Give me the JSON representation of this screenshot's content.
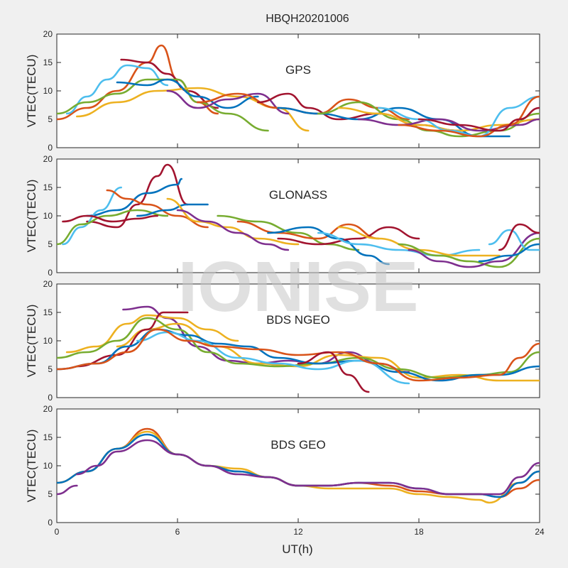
{
  "title": "HBQH20201006",
  "watermark": "IONISE",
  "xlabel": "UT(h)",
  "ylabel": "VTEC(TECU)",
  "x_ticks": [
    "0",
    "6",
    "12",
    "18",
    "24"
  ],
  "y_ticks": [
    "0",
    "5",
    "10",
    "15",
    "20"
  ],
  "colors": {
    "blue": "#0072BD",
    "orange": "#D95319",
    "yellow": "#EDB120",
    "purple": "#7E2F8E",
    "green": "#77AC30",
    "cyan": "#4DBEEE",
    "maroon": "#A2142F"
  },
  "chart_data": [
    {
      "type": "line",
      "panel_label": "GPS",
      "xlim": [
        0,
        24
      ],
      "ylim": [
        0,
        20
      ],
      "xlabel": "",
      "ylabel": "VTEC(TECU)",
      "series": [
        {
          "color": "orange",
          "x": [
            0,
            1.5,
            3,
            4.5,
            5.2,
            6,
            7,
            8
          ],
          "y": [
            5,
            7,
            10,
            15,
            18,
            12,
            8,
            6
          ]
        },
        {
          "color": "maroon",
          "x": [
            3.2,
            4.5,
            5.5,
            6.5,
            8
          ],
          "y": [
            15.5,
            15,
            13,
            10,
            7
          ]
        },
        {
          "color": "cyan",
          "x": [
            0.5,
            1.5,
            2.5,
            3.5,
            4.5,
            5.5
          ],
          "y": [
            6,
            9,
            12,
            14.5,
            14,
            11
          ]
        },
        {
          "color": "green",
          "x": [
            0,
            1.5,
            3,
            4.5,
            6,
            7,
            8.5,
            10.5
          ],
          "y": [
            6,
            8,
            9.5,
            12,
            12,
            8,
            6,
            3
          ]
        },
        {
          "color": "yellow",
          "x": [
            1,
            3,
            5,
            7,
            9,
            11,
            12.5
          ],
          "y": [
            5.5,
            8,
            10,
            10.5,
            9,
            7,
            3
          ]
        },
        {
          "color": "blue",
          "x": [
            3,
            4.5,
            5.5,
            7,
            8.5,
            10
          ],
          "y": [
            11.5,
            11,
            12,
            9,
            7,
            9
          ]
        },
        {
          "color": "purple",
          "x": [
            5.5,
            7,
            8.5,
            10,
            11.5
          ],
          "y": [
            10,
            7,
            8.5,
            9.5,
            6
          ]
        },
        {
          "color": "orange",
          "x": [
            7,
            9,
            11,
            13,
            14.5,
            16,
            17.5
          ],
          "y": [
            8,
            9.5,
            7,
            6,
            8.5,
            7,
            5
          ]
        },
        {
          "color": "maroon",
          "x": [
            10,
            11.5,
            12.5,
            14,
            16,
            18,
            20
          ],
          "y": [
            8,
            9.5,
            7,
            5,
            6,
            4,
            3
          ]
        },
        {
          "color": "blue",
          "x": [
            11,
            13,
            15,
            17,
            19,
            21,
            22.5
          ],
          "y": [
            7,
            6,
            5,
            7,
            5,
            2,
            2
          ]
        },
        {
          "color": "green",
          "x": [
            13,
            15,
            17,
            18.5,
            20,
            22,
            24
          ],
          "y": [
            6,
            8,
            5,
            3,
            2,
            3,
            6
          ]
        },
        {
          "color": "yellow",
          "x": [
            14,
            16,
            18,
            20,
            22,
            24
          ],
          "y": [
            7,
            6,
            4,
            3,
            4,
            5
          ]
        },
        {
          "color": "purple",
          "x": [
            15,
            17,
            19,
            21,
            23,
            24
          ],
          "y": [
            5,
            4,
            5,
            3,
            4,
            5
          ]
        },
        {
          "color": "cyan",
          "x": [
            16,
            18,
            19.5,
            21,
            22.5,
            24
          ],
          "y": [
            7,
            5,
            3,
            2,
            7,
            9
          ]
        },
        {
          "color": "orange",
          "x": [
            17,
            19,
            21,
            22.5,
            24
          ],
          "y": [
            4,
            3,
            2,
            4,
            9
          ]
        },
        {
          "color": "maroon",
          "x": [
            18,
            20,
            22,
            23,
            24
          ],
          "y": [
            5,
            4,
            3,
            5,
            7
          ]
        }
      ]
    },
    {
      "type": "line",
      "panel_label": "GLONASS",
      "xlim": [
        0,
        24
      ],
      "ylim": [
        0,
        20
      ],
      "xlabel": "",
      "ylabel": "VTEC(TECU)",
      "series": [
        {
          "color": "maroon",
          "x": [
            1.5,
            3,
            4,
            5,
            5.5,
            6.5
          ],
          "y": [
            9,
            8,
            12,
            17,
            19,
            12
          ]
        },
        {
          "color": "blue",
          "x": [
            1.5,
            3,
            4.5,
            6,
            6.2
          ],
          "y": [
            10,
            11,
            14,
            15.5,
            16.5
          ]
        },
        {
          "color": "cyan",
          "x": [
            0.3,
            1.2,
            2.2,
            3.2
          ],
          "y": [
            5,
            8,
            11,
            15
          ]
        },
        {
          "color": "orange",
          "x": [
            2.5,
            3.5,
            4.5,
            6,
            7.5
          ],
          "y": [
            14.5,
            13,
            12,
            10,
            8
          ]
        },
        {
          "color": "green",
          "x": [
            0,
            1.2,
            2.5,
            4,
            5.5
          ],
          "y": [
            5,
            8.5,
            10,
            11,
            10
          ]
        },
        {
          "color": "maroon",
          "x": [
            0.3,
            1.5,
            2.8,
            4,
            5
          ],
          "y": [
            9,
            10,
            9,
            9.5,
            10
          ]
        },
        {
          "color": "blue",
          "x": [
            4,
            5.5,
            6.5,
            7.5
          ],
          "y": [
            10,
            11,
            12,
            12
          ]
        },
        {
          "color": "yellow",
          "x": [
            5.5,
            7,
            8.5,
            10,
            12
          ],
          "y": [
            13,
            9,
            8,
            6,
            5
          ]
        },
        {
          "color": "purple",
          "x": [
            6,
            7.5,
            9,
            10.5,
            11.5
          ],
          "y": [
            11,
            9,
            7,
            5,
            4
          ]
        },
        {
          "color": "green",
          "x": [
            8,
            10,
            12,
            13.5,
            15
          ],
          "y": [
            10,
            9,
            7,
            5,
            4
          ]
        },
        {
          "color": "orange",
          "x": [
            9,
            11,
            13,
            14.5,
            16
          ],
          "y": [
            9,
            7,
            6,
            8.5,
            6
          ]
        },
        {
          "color": "blue",
          "x": [
            10.5,
            12.5,
            14,
            15.5,
            16.5
          ],
          "y": [
            7,
            8,
            6,
            3,
            1.5
          ]
        },
        {
          "color": "maroon",
          "x": [
            11,
            13,
            15,
            16.5,
            18
          ],
          "y": [
            6,
            5,
            6,
            8,
            6
          ]
        },
        {
          "color": "cyan",
          "x": [
            13,
            15,
            17,
            19,
            21
          ],
          "y": [
            7,
            5,
            4,
            3,
            4
          ]
        },
        {
          "color": "yellow",
          "x": [
            14,
            16,
            18,
            20,
            22
          ],
          "y": [
            8,
            6,
            4,
            3,
            3
          ]
        },
        {
          "color": "green",
          "x": [
            17,
            19,
            20.5,
            22,
            24
          ],
          "y": [
            5,
            3,
            2,
            1,
            6
          ]
        },
        {
          "color": "purple",
          "x": [
            17.5,
            19,
            20.5,
            22,
            24
          ],
          "y": [
            4,
            2,
            1,
            2,
            7
          ]
        },
        {
          "color": "cyan",
          "x": [
            21.5,
            22.5,
            23.5,
            24
          ],
          "y": [
            5,
            7.5,
            4,
            4
          ]
        },
        {
          "color": "maroon",
          "x": [
            22,
            23,
            24
          ],
          "y": [
            4,
            8.5,
            7
          ]
        },
        {
          "color": "blue",
          "x": [
            21,
            22.5,
            24
          ],
          "y": [
            2,
            3,
            5
          ]
        }
      ]
    },
    {
      "type": "line",
      "panel_label": "BDS NGEO",
      "xlim": [
        0,
        24
      ],
      "ylim": [
        0,
        20
      ],
      "xlabel": "",
      "ylabel": "VTEC(TECU)",
      "series": [
        {
          "color": "purple",
          "x": [
            3.3,
            4.5,
            5.5,
            7,
            8.5,
            10,
            11.5,
            13,
            14.5,
            16,
            17.5
          ],
          "y": [
            15.5,
            16,
            14,
            9,
            6.5,
            6,
            6.5,
            6,
            8,
            6,
            4.5
          ]
        },
        {
          "color": "yellow",
          "x": [
            0.5,
            2,
            3.5,
            4.5,
            6,
            7.5,
            9
          ],
          "y": [
            8,
            9,
            13,
            14.5,
            14,
            12,
            10
          ]
        },
        {
          "color": "yellow",
          "x": [
            3,
            4.5,
            6,
            8,
            10,
            12,
            14,
            16,
            18,
            20,
            22,
            24
          ],
          "y": [
            9,
            12,
            13,
            9,
            6,
            5.5,
            7.5,
            7,
            3.5,
            4,
            3,
            3
          ]
        },
        {
          "color": "maroon",
          "x": [
            1,
            3,
            4.5,
            5.3,
            6.5
          ],
          "y": [
            5.5,
            7.5,
            12,
            15,
            15
          ]
        },
        {
          "color": "green",
          "x": [
            0,
            1.5,
            3,
            4.5,
            6,
            7.5,
            9,
            11,
            13,
            15,
            17,
            19,
            21,
            22.5,
            24
          ],
          "y": [
            7,
            8,
            10,
            14,
            12,
            8,
            6,
            5.5,
            6,
            7,
            5,
            3.5,
            4,
            4.5,
            8
          ]
        },
        {
          "color": "blue",
          "x": [
            0,
            2,
            3.5,
            5,
            6.5,
            8,
            9.5,
            11,
            13,
            15,
            17,
            19,
            21,
            22,
            24
          ],
          "y": [
            5,
            6,
            9,
            12,
            11,
            9.5,
            9,
            7,
            6,
            6.5,
            4.5,
            3,
            4,
            4,
            5.5
          ]
        },
        {
          "color": "cyan",
          "x": [
            4,
            5.5,
            7,
            9,
            11,
            13,
            15,
            17.5
          ],
          "y": [
            10,
            11.5,
            10,
            7,
            6,
            5,
            6.5,
            2.5
          ]
        },
        {
          "color": "orange",
          "x": [
            0,
            2,
            3.5,
            5,
            6.5,
            8,
            10,
            12,
            14,
            16,
            18,
            20,
            22,
            23,
            24
          ],
          "y": [
            5,
            6,
            8,
            12,
            10,
            9,
            8.5,
            7.5,
            8,
            6,
            3,
            3.5,
            4,
            7,
            9.5
          ]
        },
        {
          "color": "maroon",
          "x": [
            12,
            13.5,
            14.5,
            15.5
          ],
          "y": [
            6,
            8,
            4,
            1
          ]
        }
      ]
    },
    {
      "type": "line",
      "panel_label": "BDS GEO",
      "xlim": [
        0,
        24
      ],
      "ylim": [
        0,
        20
      ],
      "xlabel": "",
      "ylabel": "VTEC(TECU)",
      "series": [
        {
          "color": "orange",
          "x": [
            0,
            1.5,
            3,
            4.5,
            6,
            7.5,
            9,
            10.5,
            12,
            13.5,
            15,
            16.5,
            18,
            19.5,
            21,
            22,
            23,
            24
          ],
          "y": [
            7,
            9,
            13,
            16.5,
            12,
            10,
            9,
            8,
            6.5,
            6.5,
            7,
            6.5,
            5.5,
            5,
            5,
            4.5,
            6,
            7.5
          ]
        },
        {
          "color": "yellow",
          "x": [
            0,
            1.5,
            3,
            4.5,
            6,
            7.5,
            9,
            10.5,
            12,
            13.5,
            15,
            16.5,
            18,
            19.5,
            21,
            21.5,
            23,
            24
          ],
          "y": [
            7,
            9,
            13,
            16,
            12,
            10,
            9.5,
            8,
            6.5,
            6,
            6,
            6,
            5,
            4.5,
            4,
            3.5,
            7,
            9
          ]
        },
        {
          "color": "blue",
          "x": [
            0,
            1.5,
            3,
            4.5,
            6,
            7.5,
            9,
            10.5,
            12,
            13.5,
            15,
            16.5,
            18,
            19.5,
            21,
            22,
            23,
            24
          ],
          "y": [
            7,
            9,
            13,
            15.5,
            12,
            10,
            9,
            8,
            6.5,
            6.5,
            7,
            7,
            6,
            5,
            5,
            4.5,
            7,
            9
          ]
        },
        {
          "color": "purple",
          "x": [
            1,
            2,
            3,
            4.5,
            6,
            7.5,
            9,
            10.5,
            12,
            13.5,
            15,
            16.5,
            18,
            19.5,
            21,
            22,
            23,
            24
          ],
          "y": [
            8.5,
            10,
            12.5,
            14.5,
            12,
            10,
            8.5,
            8,
            6.5,
            6.5,
            7,
            7,
            6,
            5,
            5,
            5,
            8,
            10.5
          ]
        },
        {
          "color": "purple",
          "x": [
            0,
            1
          ],
          "y": [
            5,
            6.5
          ]
        }
      ]
    }
  ]
}
